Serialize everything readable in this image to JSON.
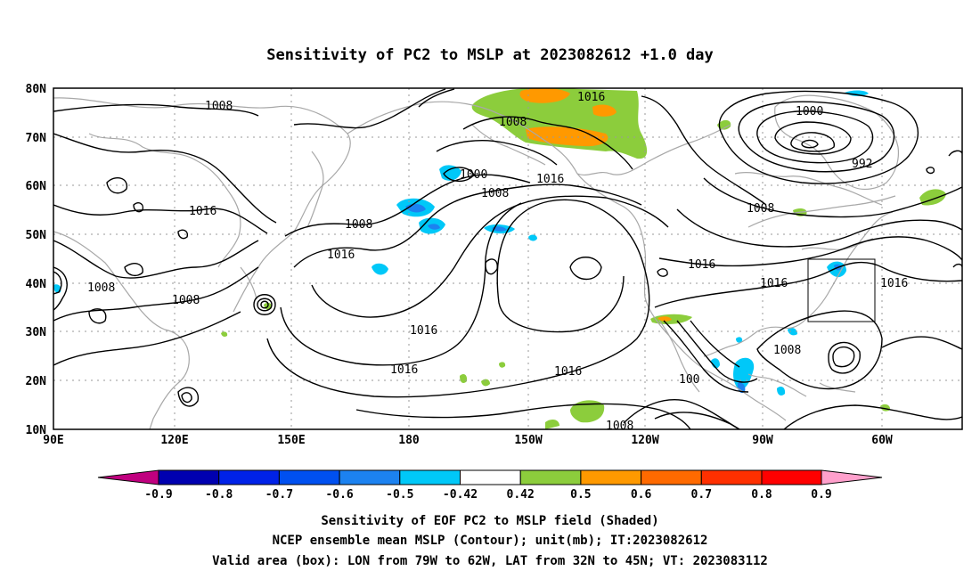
{
  "title": "Sensitivity of PC2 to MSLP at 2023082612 +1.0 day",
  "lat_labels": [
    "80N",
    "70N",
    "60N",
    "50N",
    "40N",
    "30N",
    "20N",
    "10N"
  ],
  "lon_labels": [
    "90E",
    "120E",
    "150E",
    "180",
    "150W",
    "120W",
    "90W",
    "60W"
  ],
  "contour_labels": [
    "1008",
    "1016",
    "1008",
    "1000",
    "1008",
    "1016",
    "1000",
    "992",
    "1016",
    "1008",
    "1008",
    "1016",
    "1008",
    "1008",
    "1016",
    "1016",
    "1016",
    "1016",
    "1016",
    "1008",
    "1016",
    "1008",
    "100"
  ],
  "colorbar": {
    "labels": [
      "-0.9",
      "-0.8",
      "-0.7",
      "-0.6",
      "-0.5",
      "-0.42",
      "0.42",
      "0.5",
      "0.6",
      "0.7",
      "0.8",
      "0.9"
    ],
    "colors": [
      "#c0007f",
      "#0000b0",
      "#0022e8",
      "#0050f0",
      "#1c82f0",
      "#00c8f8",
      "#ffffff",
      "#8ccd3c",
      "#ff9900",
      "#ff6a00",
      "#ff3000",
      "#ff0000",
      "#ffa0cc"
    ]
  },
  "captions": {
    "line1": "Sensitivity of EOF PC2 to MSLP field (Shaded)",
    "line2": "NCEP ensemble mean MSLP (Contour); unit(mb); IT:2023082612",
    "line3": "Valid area (box): LON from 79W to 62W, LAT from 32N to 45N; VT: 2023083112"
  },
  "map_style": {
    "green": "#8ccd3c",
    "orange": "#ff9900",
    "cyan": "#00c8f8",
    "blue": "#1c82f0"
  }
}
